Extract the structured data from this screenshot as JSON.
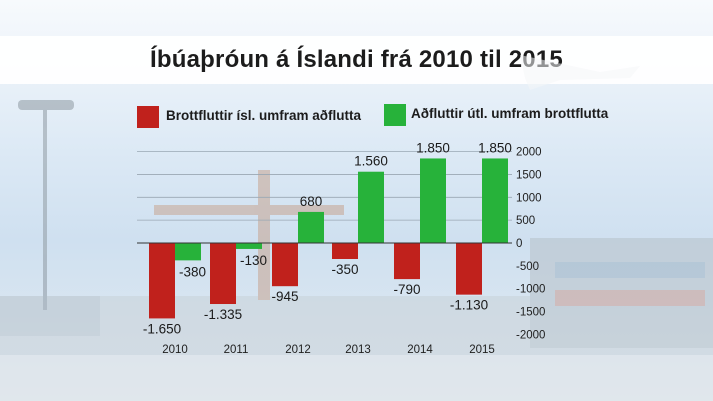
{
  "title": "Íbúaþróun á Íslandi frá 2010 til 2015",
  "colors": {
    "red": "#c0211c",
    "green": "#27b23a",
    "grid": "#9aa7b3"
  },
  "chart_data": {
    "type": "bar",
    "title": "Íbúaþróun á Íslandi frá 2010 til 2015",
    "categories": [
      "2010",
      "2011",
      "2012",
      "2013",
      "2014",
      "2015"
    ],
    "series": [
      {
        "name": "Brottfluttir ísl. umfram aðflutta",
        "color": "#c0211c",
        "values": [
          -1650,
          -1335,
          -945,
          -350,
          -790,
          -1130
        ],
        "labels": [
          "-1.650",
          "-1.335",
          "-945",
          "-350",
          "-790",
          "-1.130"
        ]
      },
      {
        "name": "Aðfluttir útl. umfram brottflutta",
        "color": "#27b23a",
        "values": [
          -380,
          -130,
          680,
          1560,
          1850,
          1850
        ],
        "labels": [
          "-380",
          "-130",
          "680",
          "1.560",
          "1.850",
          "1.850"
        ]
      }
    ],
    "ylim": [
      -2000,
      2000
    ],
    "yticks": [
      2000,
      1500,
      1000,
      500,
      0,
      -500,
      -1000,
      -1500,
      -2000
    ],
    "ytick_labels": [
      "2000",
      "1500",
      "1000",
      "500",
      "0",
      "-500",
      "-1000",
      "-1500",
      "-2000"
    ],
    "grid": true,
    "legend": "top"
  }
}
